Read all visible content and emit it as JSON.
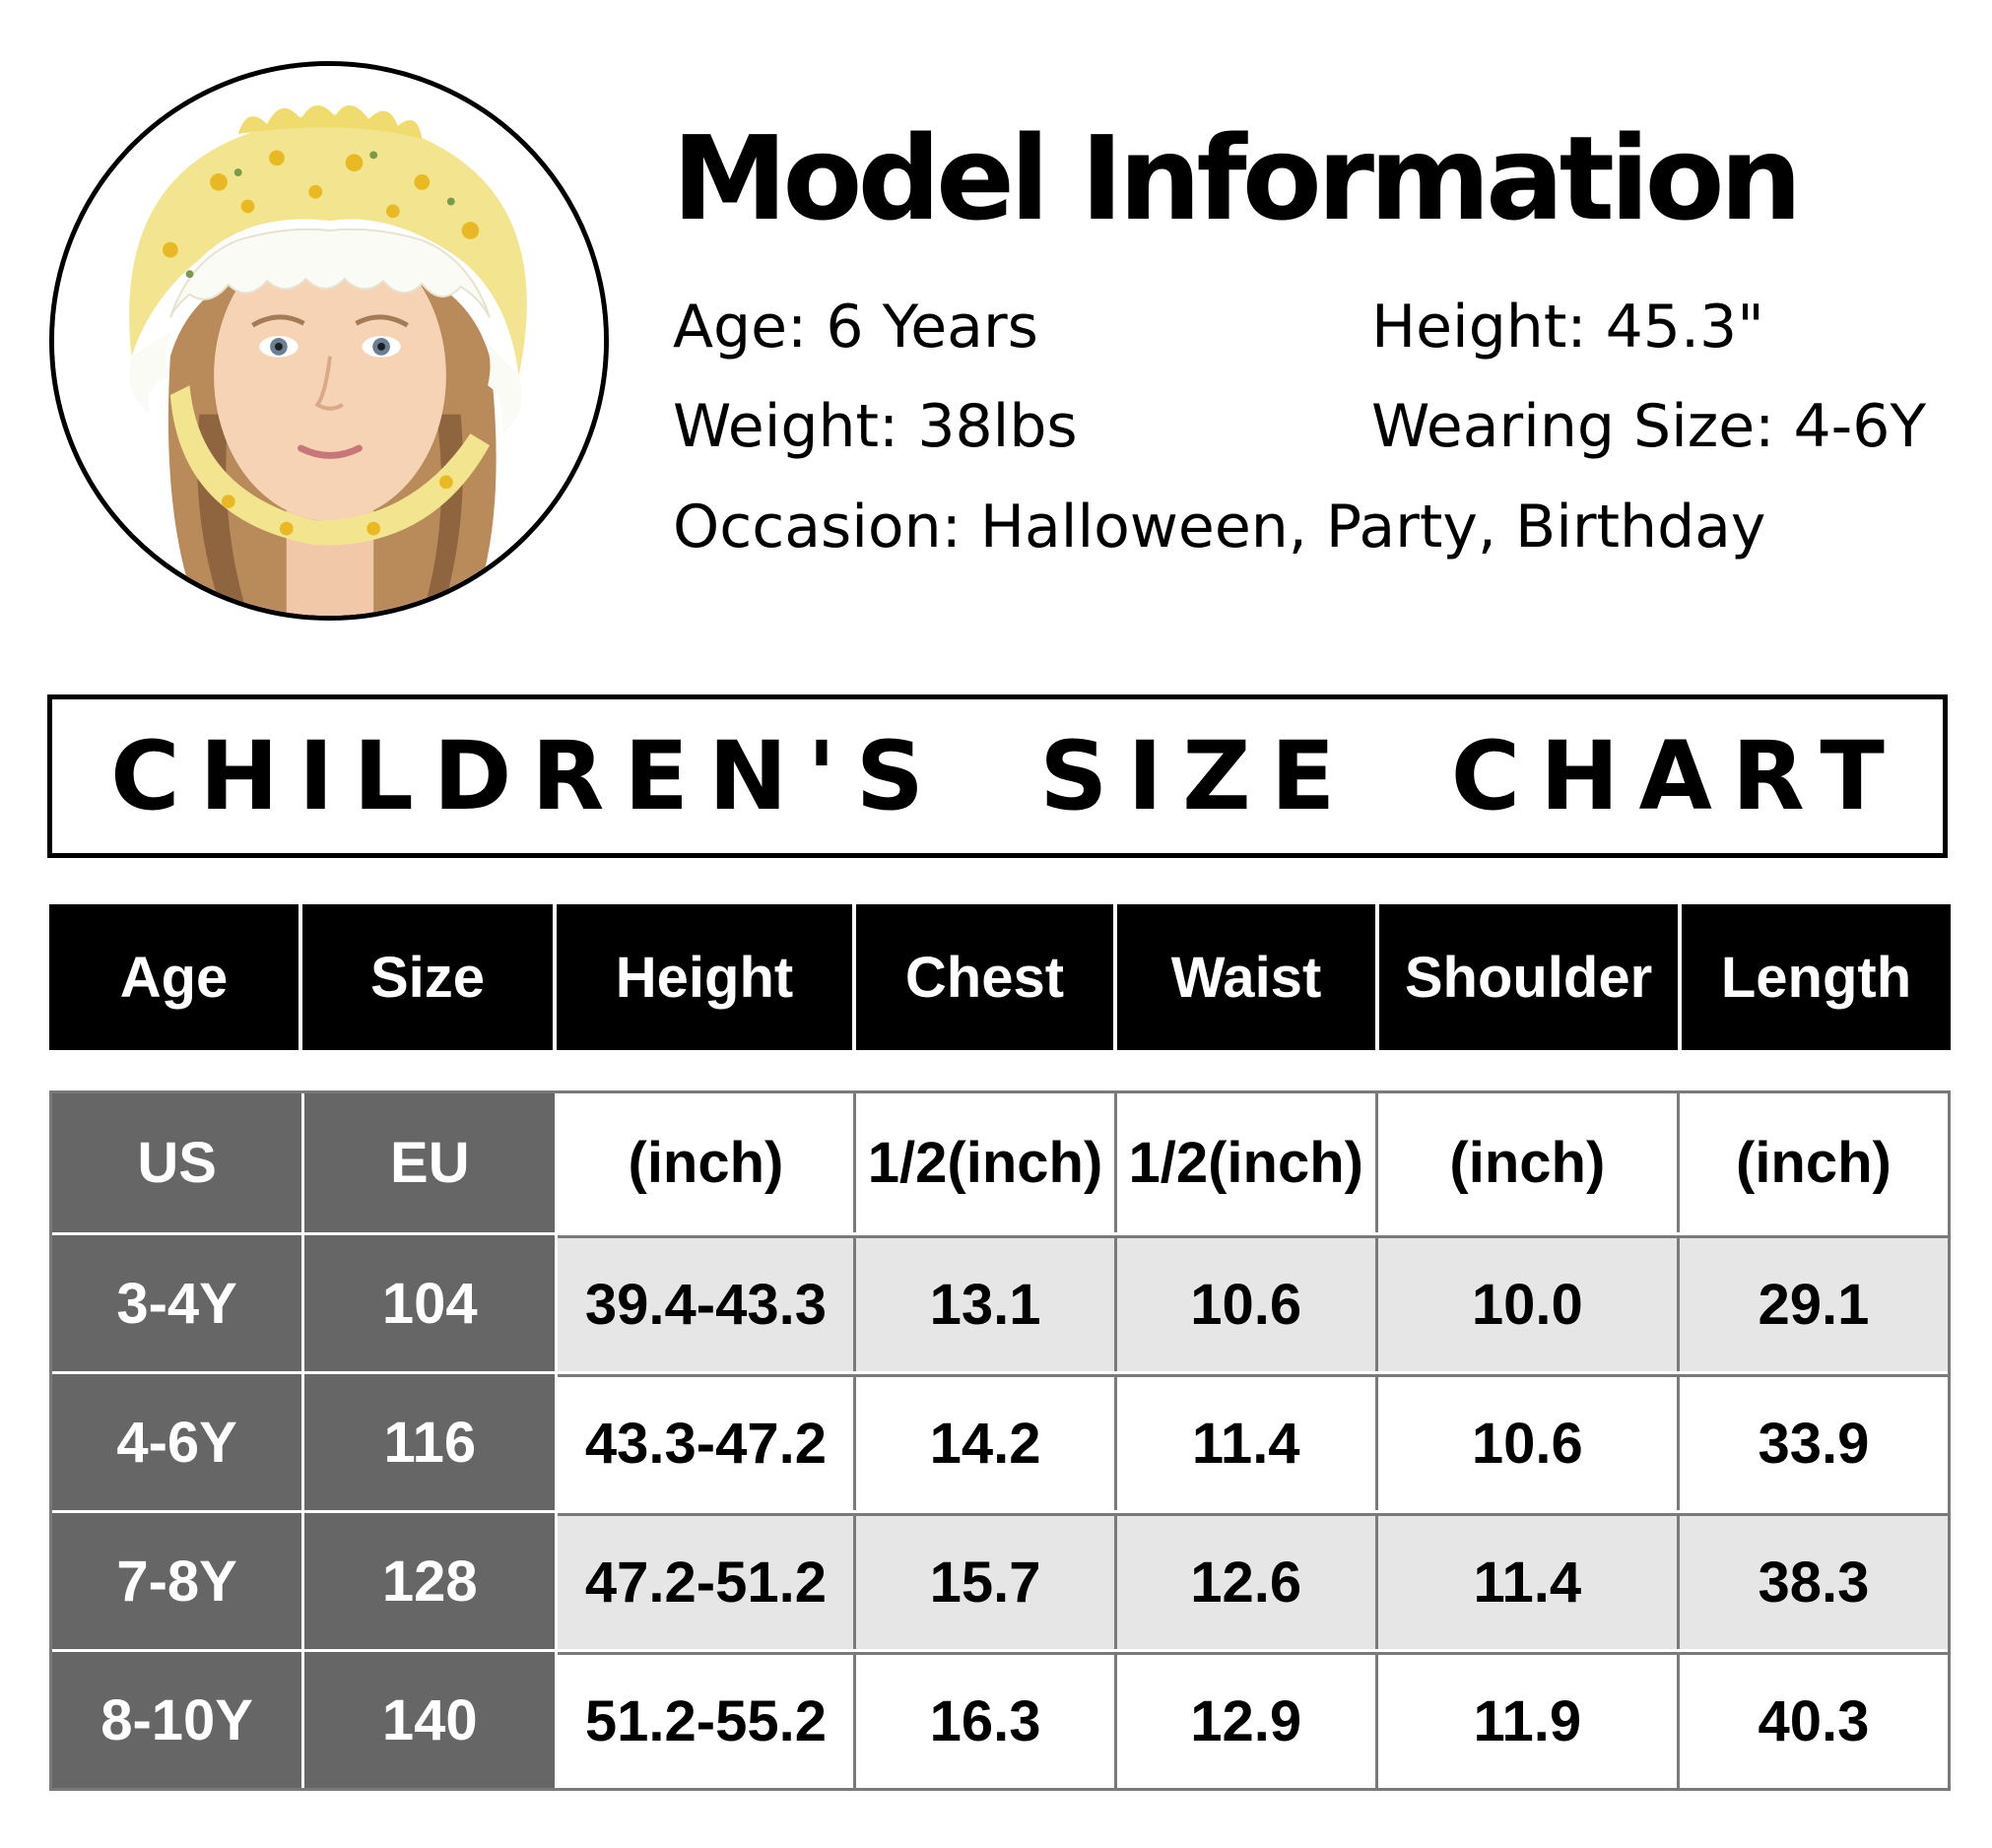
{
  "model": {
    "title": "Model Information",
    "age": "Age: 6 Years",
    "height": "Height: 45.3\"",
    "weight": "Weight: 38lbs",
    "wearing_size": "Wearing Size: 4-6Y",
    "occasion": "Occasion: Halloween, Party, Birthday"
  },
  "chart": {
    "title": "CHILDREN'S SIZE CHART",
    "columns": [
      "Age",
      "Size",
      "Height",
      "Chest",
      "Waist",
      "Shoulder",
      "Length"
    ],
    "units": [
      "US",
      "EU",
      "(inch)",
      "1/2(inch)",
      "1/2(inch)",
      "(inch)",
      "(inch)"
    ],
    "rows": [
      [
        "3-4Y",
        "104",
        "39.4-43.3",
        "13.1",
        "10.6",
        "10.0",
        "29.1"
      ],
      [
        "4-6Y",
        "116",
        "43.3-47.2",
        "14.2",
        "11.4",
        "10.6",
        "33.9"
      ],
      [
        "7-8Y",
        "128",
        "47.2-51.2",
        "15.7",
        "12.6",
        "11.4",
        "38.3"
      ],
      [
        "8-10Y",
        "140",
        "51.2-55.2",
        "16.3",
        "12.9",
        "11.9",
        "40.3"
      ]
    ]
  },
  "colors": {
    "header_bg": "#000000",
    "label_bg": "#666666",
    "shade_bg": "#e6e6e6",
    "bonnet_yellow": "#f3e58f"
  }
}
